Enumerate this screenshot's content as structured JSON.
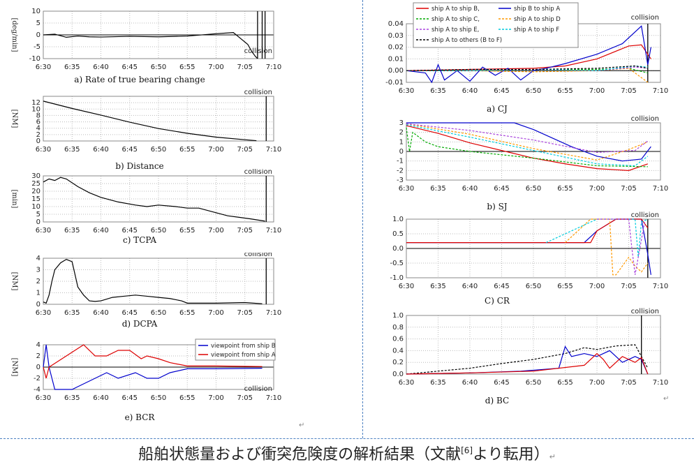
{
  "caption": {
    "text": "船舶状態量および衝突危険度の解析結果（文献",
    "ref": "[6]",
    "tail": "より転用）"
  },
  "return_mark": "↵",
  "chart_data": [
    {
      "id": "a",
      "type": "line",
      "title": "a) Rate of true bearing change",
      "ylabel": "[deg/min]",
      "x_ticks": [
        "6:30",
        "6:35",
        "6:40",
        "6:45",
        "6:50",
        "6:55",
        "7:00",
        "7:05",
        "7:10"
      ],
      "ylim": [
        -10,
        10
      ],
      "y_ticks": [
        -10,
        -5,
        0,
        5,
        10
      ],
      "annotation": "collision",
      "series": [
        {
          "color": "#000000",
          "x": [
            0,
            2,
            4,
            6,
            8,
            10,
            15,
            20,
            25,
            30,
            33,
            34.5,
            35.5,
            36.2,
            36.8,
            37.2
          ],
          "y": [
            0,
            0.3,
            -1,
            -0.5,
            -0.8,
            -0.9,
            -0.6,
            -0.8,
            -0.5,
            0.5,
            1,
            -2,
            -4,
            -7,
            -9,
            -10
          ]
        }
      ],
      "vlines": [
        {
          "x": 37.2,
          "color": "#000"
        },
        {
          "x": 38,
          "color": "#000"
        },
        {
          "x": 38.5,
          "color": "#000"
        }
      ]
    },
    {
      "id": "b",
      "type": "line",
      "title": "b) Distance",
      "ylabel": "[NM]",
      "x_ticks": [
        "6:30",
        "6:35",
        "6:40",
        "6:45",
        "6:50",
        "6:55",
        "7:00",
        "7:05",
        "7:10"
      ],
      "ylim": [
        0,
        14
      ],
      "y_ticks": [
        0,
        2,
        4,
        6,
        8,
        10,
        12
      ],
      "annotation": "collision",
      "series": [
        {
          "color": "#000000",
          "x": [
            0,
            5,
            10,
            15,
            20,
            25,
            30,
            35,
            37
          ],
          "y": [
            12.5,
            10.2,
            8.1,
            5.9,
            3.9,
            2.4,
            1.2,
            0.4,
            0.1
          ]
        }
      ],
      "vlines": [
        {
          "x": 38.7,
          "color": "#000"
        }
      ]
    },
    {
      "id": "c",
      "type": "line",
      "title": "c) TCPA",
      "ylabel": "[min]",
      "x_ticks": [
        "6:30",
        "6:35",
        "6:40",
        "6:45",
        "6:50",
        "6:55",
        "7:00",
        "7:05",
        "7:10"
      ],
      "ylim": [
        0,
        30
      ],
      "y_ticks": [
        0,
        5,
        10,
        15,
        20,
        25,
        30
      ],
      "annotation": "collision",
      "series": [
        {
          "color": "#000000",
          "x": [
            0,
            1,
            2,
            3,
            4,
            6,
            8,
            10,
            13,
            16,
            18,
            20,
            23,
            25,
            27,
            30,
            32,
            34,
            36,
            38.5
          ],
          "y": [
            26,
            28,
            27,
            29,
            28,
            23,
            19,
            16,
            13,
            11,
            10,
            11,
            10,
            9,
            9,
            6,
            4,
            3,
            2,
            0.5
          ]
        }
      ],
      "vlines": [
        {
          "x": 38.7,
          "color": "#000"
        }
      ]
    },
    {
      "id": "d",
      "type": "line",
      "title": "d) DCPA",
      "ylabel": "[NM]",
      "x_ticks": [
        "6:30",
        "6:35",
        "6:40",
        "6:45",
        "6:50",
        "6:55",
        "7:00",
        "7:05",
        "7:10"
      ],
      "ylim": [
        0,
        4
      ],
      "y_ticks": [
        0,
        1,
        2,
        3,
        4
      ],
      "annotation": "collision",
      "series": [
        {
          "color": "#000000",
          "x": [
            0,
            0.5,
            1,
            1.5,
            2,
            3,
            4,
            5,
            6,
            7,
            8,
            9,
            10,
            12,
            14,
            16,
            18,
            20,
            22,
            24,
            25,
            26,
            30,
            35,
            38
          ],
          "y": [
            0.2,
            0.1,
            0.8,
            2,
            3,
            3.6,
            3.9,
            3.7,
            1.5,
            0.8,
            0.3,
            0.25,
            0.3,
            0.6,
            0.7,
            0.8,
            0.7,
            0.6,
            0.5,
            0.3,
            0.1,
            0.1,
            0.1,
            0.15,
            0.05
          ]
        }
      ],
      "vlines": [
        {
          "x": 38.7,
          "color": "#000"
        }
      ]
    },
    {
      "id": "e",
      "type": "line",
      "title": "e) BCR",
      "ylabel": "[NM]",
      "x_ticks": [
        "6:30",
        "6:35",
        "6:40",
        "6:45",
        "6:50",
        "6:55",
        "7:00",
        "7:05",
        "7:10"
      ],
      "ylim": [
        -4,
        4
      ],
      "y_ticks": [
        -4,
        -2,
        0,
        2,
        4
      ],
      "annotation": "collision",
      "legend": [
        "viewpoint from ship B",
        "viewpoint from ship A"
      ],
      "series": [
        {
          "name": "viewpoint from ship B",
          "color": "#0000cc",
          "x": [
            0,
            0.5,
            1,
            2,
            5,
            7,
            9,
            11,
            13,
            16,
            18,
            20,
            22,
            25,
            30,
            38
          ],
          "y": [
            0,
            4,
            0,
            -4,
            -4,
            -3,
            -2,
            -1,
            -2,
            -1,
            -2,
            -2,
            -1,
            -0.3,
            -0.3,
            -0.2
          ]
        },
        {
          "name": "viewpoint from ship A",
          "color": "#dd0000",
          "x": [
            0,
            0.5,
            1,
            7,
            9,
            11,
            13,
            15,
            17,
            18,
            20,
            22,
            25,
            30,
            38
          ],
          "y": [
            0,
            -2,
            0,
            4,
            2,
            2,
            3,
            3,
            1.5,
            2,
            1.5,
            0.8,
            0.2,
            0.2,
            0.1
          ]
        }
      ]
    },
    {
      "id": "CJ",
      "type": "line",
      "title": "a) CJ",
      "x_ticks": [
        "6:30",
        "6:35",
        "6:40",
        "6:45",
        "6:50",
        "6:55",
        "7:00",
        "7:05",
        "7:10"
      ],
      "ylim": [
        -0.01,
        0.04
      ],
      "y_ticks": [
        "-0.01",
        "0.00",
        "0.01",
        "0.02",
        "0.03",
        "0.04"
      ],
      "annotation": "collision",
      "legend": [
        "ship A to ship B,",
        "ship B to ship A",
        "ship A to ship C,",
        "ship A to ship D",
        "ship A to ship E,",
        "ship A to ship F",
        "ship A to others (B to F)"
      ],
      "series": [
        {
          "name": "ship A to ship B,",
          "color": "#dd0000",
          "dash": "",
          "x": [
            0,
            10,
            20,
            25,
            30,
            35,
            37,
            38.5
          ],
          "y": [
            0,
            0.001,
            0.002,
            0.004,
            0.01,
            0.021,
            0.022,
            0.01
          ]
        },
        {
          "name": "ship B to ship A",
          "color": "#0000cc",
          "dash": "",
          "x": [
            0,
            3,
            4,
            5,
            6,
            8,
            10,
            12,
            14,
            16,
            18,
            20,
            22,
            25,
            30,
            34,
            37,
            38,
            38.5
          ],
          "y": [
            0,
            -0.002,
            -0.01,
            0.005,
            -0.008,
            0,
            -0.009,
            0.003,
            -0.004,
            0.002,
            -0.008,
            0,
            0.002,
            0.006,
            0.014,
            0.023,
            0.038,
            0.005,
            0.02
          ]
        },
        {
          "name": "ship A to ship C,",
          "color": "#00aa00",
          "dash": "3,2",
          "x": [
            0,
            10,
            20,
            30,
            35,
            38
          ],
          "y": [
            0,
            0,
            0.001,
            0.001,
            0.002,
            -0.002
          ]
        },
        {
          "name": "ship A to ship D",
          "color": "#ff9900",
          "dash": "3,2",
          "x": [
            0,
            10,
            20,
            30,
            35,
            38
          ],
          "y": [
            0,
            0,
            -0.001,
            0,
            0.002,
            -0.01
          ]
        },
        {
          "name": "ship A to ship E,",
          "color": "#aa44dd",
          "dash": "3,2",
          "x": [
            0,
            10,
            20,
            30,
            36,
            38
          ],
          "y": [
            0,
            0.001,
            0.001,
            0,
            0.003,
            0.002
          ]
        },
        {
          "name": "ship A to ship F",
          "color": "#00ccdd",
          "dash": "3,2",
          "x": [
            0,
            10,
            20,
            30,
            36,
            38
          ],
          "y": [
            0,
            0,
            0.001,
            0,
            0.004,
            0.003
          ]
        },
        {
          "name": "ship A to others (B to F)",
          "color": "#000000",
          "dash": "3,2",
          "x": [
            0,
            10,
            20,
            30,
            36,
            38
          ],
          "y": [
            0,
            0.001,
            0.001,
            0.002,
            0.004,
            0.002
          ]
        }
      ],
      "vlines": [
        {
          "x": 38,
          "color": "#000"
        }
      ]
    },
    {
      "id": "SJ",
      "type": "line",
      "title": "b) SJ",
      "x_ticks": [
        "6:30",
        "6:35",
        "6:40",
        "6:45",
        "6:50",
        "6:55",
        "7:00",
        "7:05",
        "7:10"
      ],
      "ylim": [
        -3,
        3
      ],
      "y_ticks": [
        -3,
        -2,
        -1,
        0,
        1,
        2,
        3
      ],
      "annotation": "collision",
      "series": [
        {
          "color": "#0000cc",
          "dash": "",
          "x": [
            0,
            17,
            20,
            26,
            30,
            34,
            37,
            38.5
          ],
          "y": [
            3,
            3,
            2.3,
            0.5,
            -0.5,
            -1,
            -0.8,
            0.5
          ]
        },
        {
          "color": "#dd0000",
          "dash": "",
          "x": [
            0,
            5,
            10,
            15,
            20,
            25,
            30,
            35,
            38
          ],
          "y": [
            2.7,
            1.9,
            0.9,
            0.1,
            -0.7,
            -1.3,
            -1.8,
            -2,
            -1.3
          ]
        },
        {
          "color": "#00aa00",
          "dash": "3,2",
          "x": [
            0,
            0.5,
            1,
            3,
            5,
            10,
            20,
            30,
            38
          ],
          "y": [
            2.5,
            0,
            2,
            1,
            0.5,
            0,
            -0.7,
            -1.5,
            -1.6
          ]
        },
        {
          "color": "#ff9900",
          "dash": "3,2",
          "x": [
            0,
            10,
            20,
            25,
            30,
            35,
            38
          ],
          "y": [
            2.9,
            1.8,
            0.3,
            -0.3,
            -0.9,
            0.2,
            1
          ]
        },
        {
          "color": "#aa44dd",
          "dash": "3,2",
          "x": [
            0,
            10,
            20,
            30,
            36,
            38
          ],
          "y": [
            2.9,
            2.2,
            1.2,
            -0.1,
            0.1,
            1.1
          ]
        },
        {
          "color": "#00ccdd",
          "dash": "3,2",
          "x": [
            0,
            10,
            20,
            30,
            36,
            38
          ],
          "y": [
            2.8,
            1.5,
            0.1,
            -1.3,
            -1.5,
            -0.5
          ]
        }
      ],
      "vlines": []
    },
    {
      "id": "CR",
      "type": "line",
      "title": "C) CR",
      "x_ticks": [
        "6:30",
        "6:35",
        "6:40",
        "6:45",
        "6:50",
        "6:55",
        "7:00",
        "7:05",
        "7:10"
      ],
      "ylim": [
        -1,
        1
      ],
      "y_ticks": [
        "-1.0",
        "-0.5",
        "0.0",
        "0.5",
        "1.0"
      ],
      "annotation": "collision",
      "series": [
        {
          "color": "#0000cc",
          "dash": "",
          "x": [
            0,
            28,
            30,
            33,
            37,
            38,
            38.5
          ],
          "y": [
            0.2,
            0.2,
            0.6,
            1,
            1,
            -0.2,
            -0.9
          ]
        },
        {
          "color": "#dd0000",
          "dash": "",
          "x": [
            0,
            29,
            30,
            33,
            37,
            38
          ],
          "y": [
            0.2,
            0.2,
            0.6,
            1,
            1,
            0.7
          ]
        },
        {
          "color": "#ff9900",
          "dash": "3,2",
          "x": [
            25,
            27,
            29,
            31,
            32,
            32.5,
            33,
            35,
            36,
            37,
            38
          ],
          "y": [
            0.2,
            0.6,
            1,
            1,
            1,
            -0.9,
            -0.9,
            -0.3,
            -0.6,
            -0.8,
            -0.5
          ]
        },
        {
          "color": "#00ccdd",
          "dash": "3,2",
          "x": [
            22,
            24,
            27,
            30,
            36,
            36.5,
            37,
            38
          ],
          "y": [
            0.2,
            0.4,
            0.7,
            1,
            1,
            -0.3,
            0.9,
            1
          ]
        },
        {
          "color": "#aa44dd",
          "dash": "3,2",
          "x": [
            30,
            35,
            35.5,
            36,
            37.5
          ],
          "y": [
            1,
            1,
            0,
            -0.9,
            0.9
          ]
        }
      ],
      "vlines": [
        {
          "x": 38,
          "color": "#000"
        }
      ]
    },
    {
      "id": "BC",
      "type": "line",
      "title": "d) BC",
      "x_ticks": [
        "6:30",
        "6:35",
        "6:40",
        "6:45",
        "6:50",
        "6:55",
        "7:00",
        "7:05",
        "7:10"
      ],
      "ylim": [
        0,
        1
      ],
      "y_ticks": [
        "0.0",
        "0.2",
        "0.4",
        "0.6",
        "0.8",
        "1.0"
      ],
      "annotation": "collision",
      "series": [
        {
          "color": "#000000",
          "dash": "3,2",
          "x": [
            0,
            5,
            10,
            15,
            20,
            25,
            28,
            30,
            33,
            36,
            37,
            38
          ],
          "y": [
            0,
            0.05,
            0.1,
            0.18,
            0.25,
            0.35,
            0.45,
            0.42,
            0.48,
            0.5,
            0.3,
            0.1
          ]
        },
        {
          "color": "#0000cc",
          "dash": "",
          "x": [
            0,
            10,
            18,
            24,
            25,
            26,
            28,
            30,
            32,
            34,
            36,
            37,
            38
          ],
          "y": [
            0,
            0.02,
            0.05,
            0.1,
            0.47,
            0.3,
            0.35,
            0.3,
            0.4,
            0.2,
            0.3,
            0.25,
            0
          ]
        },
        {
          "color": "#dd0000",
          "dash": "",
          "x": [
            0,
            10,
            20,
            28,
            30,
            31,
            32,
            34,
            36,
            37,
            38
          ],
          "y": [
            0,
            0.02,
            0.05,
            0.15,
            0.35,
            0.25,
            0.1,
            0.3,
            0.2,
            0.28,
            0
          ]
        }
      ],
      "vlines": [
        {
          "x": 37,
          "color": "#000"
        }
      ]
    }
  ]
}
